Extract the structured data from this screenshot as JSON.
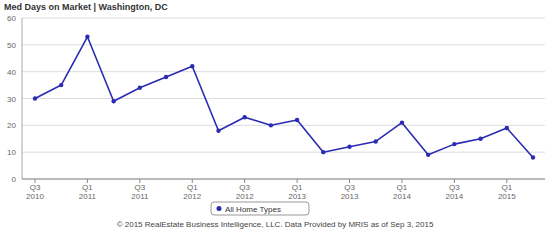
{
  "chart_data": {
    "type": "line",
    "title": "Med Days on Market | Washington, DC",
    "categories": [
      "Q3 2010",
      null,
      "Q1 2011",
      null,
      "Q3 2011",
      null,
      "Q1 2012",
      null,
      "Q3 2012",
      null,
      "Q1 2013",
      null,
      "Q3 2013",
      null,
      "Q1 2014",
      null,
      "Q3 2014",
      null,
      "Q1 2015",
      null
    ],
    "series": [
      {
        "name": "All Home Types",
        "color": "#2b2bb3",
        "marker": "circle",
        "values": [
          30,
          35,
          53,
          29,
          34,
          38,
          42,
          18,
          23,
          20,
          22,
          10,
          12,
          14,
          21,
          9,
          13,
          15,
          19,
          8
        ]
      }
    ],
    "ylim": [
      0,
      60
    ],
    "yticks": [
      0,
      10,
      20,
      30,
      40,
      50,
      60
    ],
    "grid": true,
    "legend": "bottom",
    "source": "© 2015 RealEstate Business Intelligence, LLC. Data Provided by MRIS as of Sep 3, 2015"
  }
}
